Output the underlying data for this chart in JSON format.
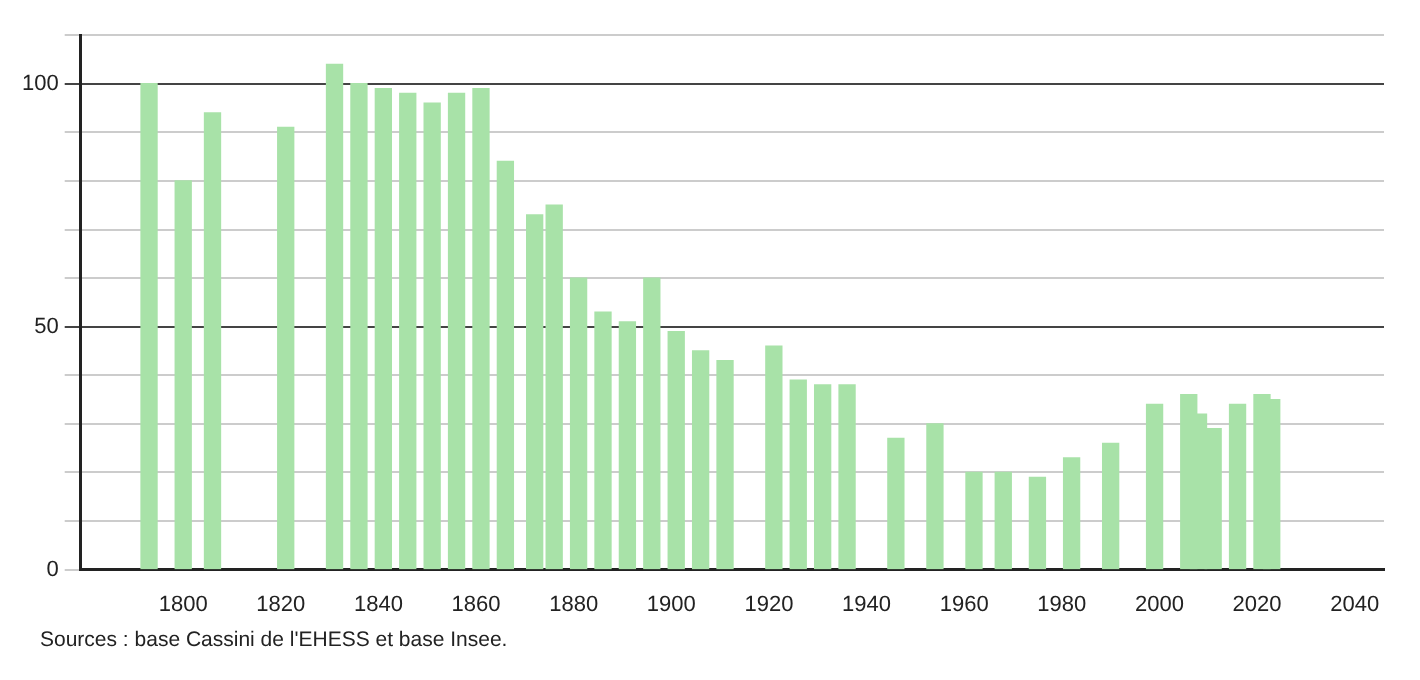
{
  "chart_data": {
    "type": "bar",
    "color": "#a8e2a8",
    "x": [
      1793,
      1800,
      1806,
      1821,
      1831,
      1836,
      1841,
      1846,
      1851,
      1856,
      1861,
      1866,
      1872,
      1876,
      1881,
      1886,
      1891,
      1896,
      1901,
      1906,
      1911,
      1921,
      1926,
      1931,
      1936,
      1946,
      1954,
      1962,
      1968,
      1975,
      1982,
      1990,
      1999,
      2006,
      2008,
      2011,
      2016,
      2021,
      2023
    ],
    "values": [
      100,
      80,
      94,
      91,
      104,
      100,
      99,
      98,
      96,
      98,
      99,
      84,
      73,
      75,
      60,
      53,
      51,
      60,
      49,
      45,
      43,
      46,
      39,
      38,
      38,
      27,
      30,
      20,
      20,
      19,
      23,
      26,
      34,
      36,
      32,
      29,
      34,
      36,
      35
    ],
    "xlim": [
      1779,
      2046
    ],
    "xticks": [
      1800,
      1820,
      1840,
      1860,
      1880,
      1900,
      1920,
      1940,
      1960,
      1980,
      2000,
      2020,
      2040
    ],
    "ylim": [
      0,
      110
    ],
    "yticks": [
      0,
      {
        "value": 10,
        "label": null
      },
      {
        "value": 20,
        "label": null
      },
      {
        "value": 30,
        "label": null
      },
      {
        "value": 40,
        "label": null
      },
      50,
      {
        "value": 60,
        "label": null
      },
      {
        "value": 70,
        "label": null
      },
      {
        "value": 80,
        "label": null
      },
      {
        "value": 90,
        "label": null
      },
      100,
      {
        "value": 110,
        "label": null
      }
    ],
    "grid": "y",
    "annotations": [
      "Sources : base Cassini de l'EHESS et base Insee."
    ]
  }
}
